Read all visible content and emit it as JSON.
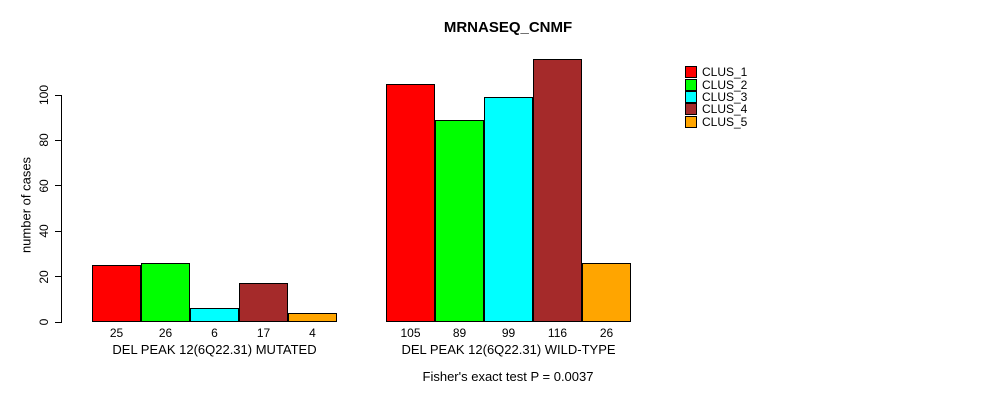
{
  "title": "MRNASEQ_CNMF",
  "ylabel": "number of cases",
  "footer": "Fisher's exact test P = 0.0037",
  "legend": {
    "items": [
      {
        "label": "CLUS_1",
        "color": "#FF0000"
      },
      {
        "label": "CLUS_2",
        "color": "#00FF00"
      },
      {
        "label": "CLUS_3",
        "color": "#00FFFF"
      },
      {
        "label": "CLUS_4",
        "color": "#A52A2A"
      },
      {
        "label": "CLUS_5",
        "color": "#FFA500"
      }
    ]
  },
  "chart_data": {
    "type": "bar",
    "title": "MRNASEQ_CNMF",
    "xlabel": "",
    "ylabel": "number of cases",
    "ylim": [
      0,
      100
    ],
    "yticks": [
      0,
      20,
      40,
      60,
      80,
      100
    ],
    "grid": false,
    "legend_position": "top-right",
    "bar_value_labels": true,
    "groups": [
      "DEL PEAK 12(6Q22.31) MUTATED",
      "DEL PEAK 12(6Q22.31) WILD-TYPE"
    ],
    "series": [
      {
        "name": "CLUS_1",
        "color": "#FF0000",
        "values": [
          25,
          105
        ]
      },
      {
        "name": "CLUS_2",
        "color": "#00FF00",
        "values": [
          26,
          89
        ]
      },
      {
        "name": "CLUS_3",
        "color": "#00FFFF",
        "values": [
          6,
          99
        ]
      },
      {
        "name": "CLUS_4",
        "color": "#A52A2A",
        "values": [
          17,
          116
        ]
      },
      {
        "name": "CLUS_5",
        "color": "#FFA500",
        "values": [
          4,
          26
        ]
      }
    ],
    "annotation": "Fisher's exact test P = 0.0037"
  }
}
